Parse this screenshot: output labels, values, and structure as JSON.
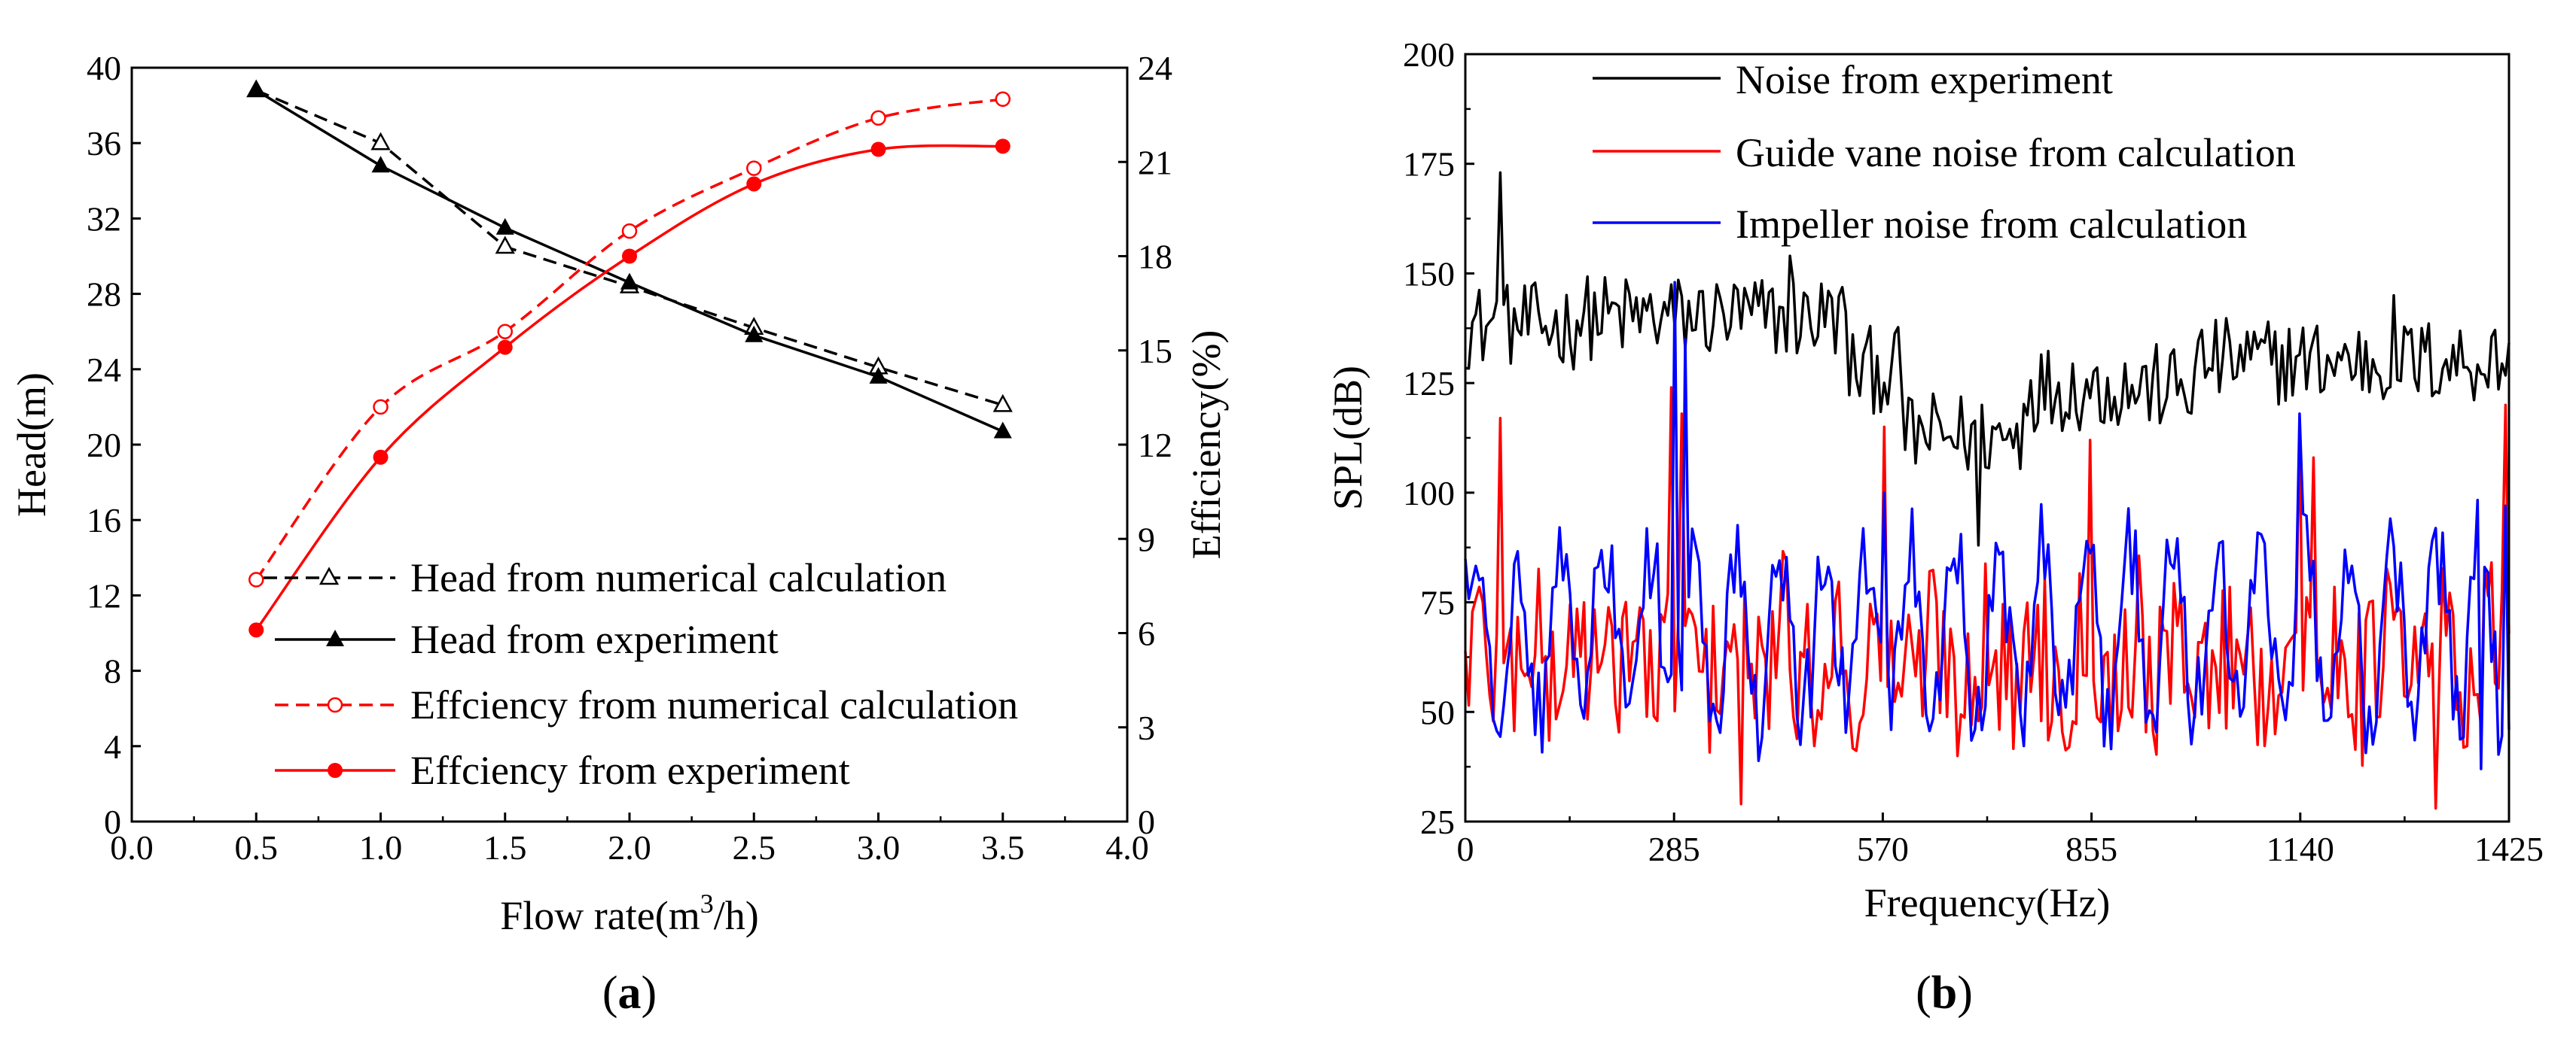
{
  "colors": {
    "black": "#000000",
    "red": "#ff0000",
    "blue": "#0000ff"
  },
  "panel_a_label": {
    "open": "(",
    "letter": "a",
    "close": ")"
  },
  "panel_b_label": {
    "open": "(",
    "letter": "b",
    "close": ")"
  },
  "chart_data": [
    {
      "type": "line",
      "panel": "(a)",
      "xlabel": {
        "main": "Flow rate(m",
        "sup": "3",
        "tail": "/h)"
      },
      "ylabel_left": "Head(m)",
      "ylabel_right": "Efficiency(%)",
      "xlim": [
        0,
        4
      ],
      "ylim_left": [
        0,
        40
      ],
      "ylim_right": [
        0,
        24
      ],
      "xticks": [
        0.0,
        0.5,
        1.0,
        1.5,
        2.0,
        2.5,
        3.0,
        3.5,
        4.0
      ],
      "xtick_labels": [
        "0.0",
        "0.5",
        "1.0",
        "1.5",
        "2.0",
        "2.5",
        "3.0",
        "3.5",
        "4.0"
      ],
      "yticks_left": [
        0,
        4,
        8,
        12,
        16,
        20,
        24,
        28,
        32,
        36,
        40
      ],
      "ytick_labels_left": [
        "0",
        "4",
        "8",
        "12",
        "16",
        "20",
        "24",
        "28",
        "32",
        "36",
        "40"
      ],
      "yticks_right": [
        0,
        3,
        6,
        9,
        12,
        15,
        18,
        21,
        24
      ],
      "ytick_labels_right": [
        "0",
        "3",
        "6",
        "9",
        "12",
        "15",
        "18",
        "21",
        "24"
      ],
      "legend_position": "lower-left",
      "series": [
        {
          "name": "Head from numerical calculation",
          "axis": "left",
          "color": "#000000",
          "dash": true,
          "marker": "open-triangle",
          "x": [
            0.5,
            1.0,
            1.5,
            2.0,
            2.5,
            3.0,
            3.5
          ],
          "y": [
            38.8,
            36.0,
            30.5,
            28.4,
            26.2,
            24.1,
            22.1
          ]
        },
        {
          "name": "Head from experiment",
          "axis": "left",
          "color": "#000000",
          "dash": false,
          "marker": "filled-triangle",
          "x": [
            0.5,
            1.0,
            1.5,
            2.0,
            2.5,
            3.0,
            3.5
          ],
          "y": [
            38.8,
            34.8,
            31.5,
            28.6,
            25.8,
            23.6,
            20.7
          ]
        },
        {
          "name": "Effciency from numerical calculation",
          "axis": "right",
          "color": "#ff0000",
          "dash": true,
          "marker": "open-circle",
          "x": [
            0.5,
            1.0,
            1.5,
            2.0,
            2.5,
            3.0,
            3.5
          ],
          "y": [
            7.7,
            13.2,
            15.6,
            18.8,
            20.8,
            22.4,
            23.0
          ]
        },
        {
          "name": "Effciency from experiment",
          "axis": "right",
          "color": "#ff0000",
          "dash": false,
          "marker": "filled-circle",
          "x": [
            0.5,
            1.0,
            1.5,
            2.0,
            2.5,
            3.0,
            3.5
          ],
          "y": [
            6.1,
            11.6,
            15.1,
            18.0,
            20.3,
            21.4,
            21.5
          ]
        }
      ]
    },
    {
      "type": "line",
      "panel": "(b)",
      "xlabel": "Frequency(Hz)",
      "ylabel": "SPL(dB)",
      "xlim": [
        0,
        1425
      ],
      "ylim": [
        25,
        200
      ],
      "xticks": [
        0,
        285,
        570,
        855,
        1140,
        1425
      ],
      "xtick_labels": [
        "0",
        "285",
        "570",
        "855",
        "1140",
        "1425"
      ],
      "yticks": [
        25,
        50,
        75,
        100,
        125,
        150,
        175,
        200
      ],
      "ytick_labels": [
        "25",
        "50",
        "75",
        "100",
        "125",
        "150",
        "175",
        "200"
      ],
      "legend_position": "top-right",
      "series": [
        {
          "name": "Noise from experiment",
          "color": "#000000",
          "points": 300,
          "shape": "dense noise, mean ~130 dB, hump ~140 dB near 200–440 Hz, dip ~112 dB near 620–720 Hz, rising to ~132 dB",
          "peaks": [
            [
              50,
              173
            ],
            [
              445,
              154
            ],
            [
              498,
              146
            ],
            [
              1270,
              145
            ],
            [
              700,
              88
            ]
          ]
        },
        {
          "name": "Guide vane noise from calculation",
          "color": "#ff0000",
          "points": 300,
          "shape": "dense noise, mean ~62 dB, range ~40–85 dB",
          "peaks": [
            [
              50,
              117
            ],
            [
              280,
              124
            ],
            [
              295,
              118
            ],
            [
              570,
              115
            ],
            [
              855,
              112
            ],
            [
              1140,
              116
            ],
            [
              1160,
              108
            ],
            [
              1420,
              120
            ],
            [
              1327,
              28
            ],
            [
              378,
              29
            ]
          ]
        },
        {
          "name": "Impeller noise from calculation",
          "color": "#0000ff",
          "points": 300,
          "shape": "quasi-periodic oscillation, mean ~68 dB, range ~45–100 dB",
          "peaks": [
            [
              285,
              148
            ],
            [
              300,
              135
            ],
            [
              570,
              100
            ],
            [
              1140,
              118
            ],
            [
              1420,
              97
            ],
            [
              1385,
              37
            ]
          ]
        }
      ]
    }
  ]
}
